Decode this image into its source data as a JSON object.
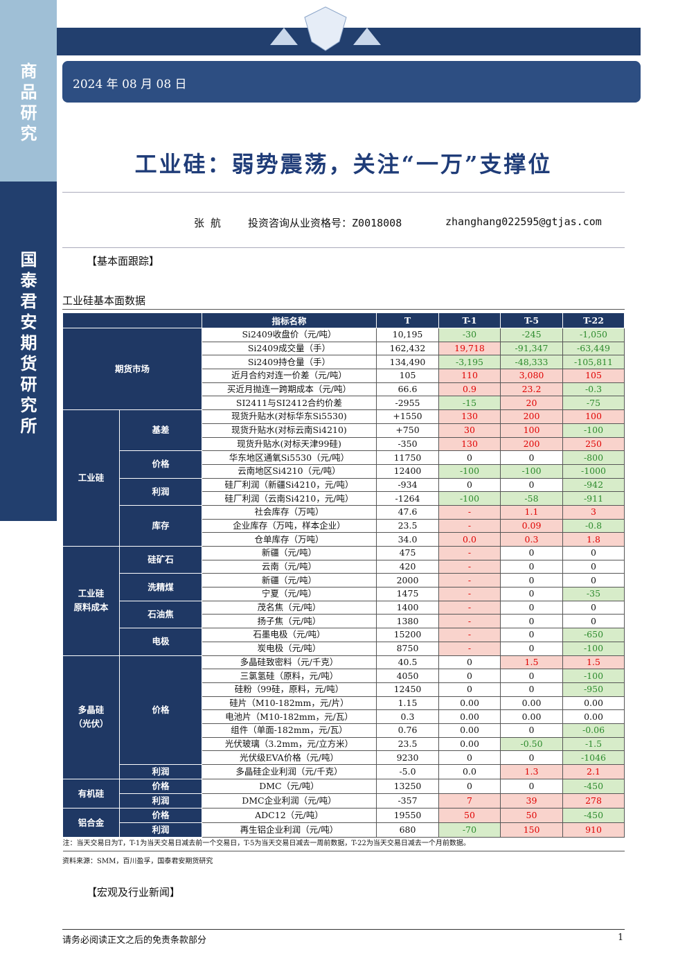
{
  "header": {
    "sidebar_top": "商品研究",
    "sidebar_bottom": "国泰君安期货研究所",
    "date": "2024 年 08 月 08 日",
    "title": "工业硅：弱势震荡，关注“一万”支撑位",
    "author": "张  航",
    "license": "投资咨询从业资格号：Z0018008",
    "email": "zhanghang022595@gtjas.com"
  },
  "section_1": "【基本面跟踪】",
  "table_title": "工业硅基本面数据",
  "table": {
    "headers": [
      "指标名称",
      "T",
      "T-1",
      "T-5",
      "T-22"
    ],
    "groups": [
      {
        "label": "期货市场",
        "subgroups": [
          {
            "rows": [
              {
                "name": "Si2409收盘价（元/吨）",
                "values": [
                  "10,195",
                  "-30",
                  "-245",
                  "-1,050"
                ],
                "colors": [
                  null,
                  "green",
                  "green",
                  "green"
                ]
              },
              {
                "name": "Si2409成交量（手）",
                "values": [
                  "162,432",
                  "19,718",
                  "-91,347",
                  "-63,449"
                ],
                "colors": [
                  null,
                  "red",
                  "green",
                  "green"
                ]
              },
              {
                "name": "Si2409持仓量（手）",
                "values": [
                  "134,490",
                  "-3,195",
                  "-48,333",
                  "-105,811"
                ],
                "colors": [
                  null,
                  "green",
                  "green",
                  "green"
                ]
              },
              {
                "name": "近月合约对连一价差（元/吨）",
                "values": [
                  "105",
                  "110",
                  "3,080",
                  "105"
                ],
                "colors": [
                  null,
                  "red",
                  "red",
                  "red"
                ]
              },
              {
                "name": "买近月抛连一跨期成本（元/吨）",
                "values": [
                  "66.6",
                  "0.9",
                  "23.2",
                  "-0.3"
                ],
                "colors": [
                  null,
                  "red",
                  "red",
                  "green"
                ]
              },
              {
                "name": "SI2411与SI2412合约价差",
                "values": [
                  "-2955",
                  "-15",
                  "20",
                  "-75"
                ],
                "colors": [
                  null,
                  "green",
                  "red",
                  "green"
                ]
              }
            ]
          }
        ]
      },
      {
        "label": "工业硅",
        "subgroups": [
          {
            "label": "基差",
            "rows": [
              {
                "name": "现货升贴水(对标华东Si5530)",
                "values": [
                  "+1550",
                  "130",
                  "200",
                  "100"
                ],
                "colors": [
                  null,
                  "red",
                  "red",
                  "red"
                ]
              },
              {
                "name": "现货升贴水(对标云南Si4210)",
                "values": [
                  "+750",
                  "30",
                  "100",
                  "-100"
                ],
                "colors": [
                  null,
                  "red",
                  "red",
                  "green"
                ]
              },
              {
                "name": "现货升贴水(对标天津99硅)",
                "values": [
                  "-350",
                  "130",
                  "200",
                  "250"
                ],
                "colors": [
                  null,
                  "red",
                  "red",
                  "red"
                ]
              }
            ]
          },
          {
            "label": "价格",
            "rows": [
              {
                "name": "华东地区通氧Si5530（元/吨）",
                "values": [
                  "11750",
                  "0",
                  "0",
                  "-800"
                ],
                "colors": [
                  null,
                  null,
                  null,
                  "green"
                ]
              },
              {
                "name": "云南地区Si4210（元/吨）",
                "values": [
                  "12400",
                  "-100",
                  "-100",
                  "-1000"
                ],
                "colors": [
                  null,
                  "green",
                  "green",
                  "green"
                ]
              }
            ]
          },
          {
            "label": "利润",
            "rows": [
              {
                "name": "硅厂利润（新疆Si4210，元/吨）",
                "values": [
                  "-934",
                  "0",
                  "0",
                  "-942"
                ],
                "colors": [
                  null,
                  null,
                  null,
                  "green"
                ]
              },
              {
                "name": "硅厂利润（云南Si4210，元/吨）",
                "values": [
                  "-1264",
                  "-100",
                  "-58",
                  "-911"
                ],
                "colors": [
                  null,
                  "green",
                  "green",
                  "green"
                ]
              }
            ]
          },
          {
            "label": "库存",
            "rows": [
              {
                "name": "社会库存（万吨）",
                "values": [
                  "47.6",
                  "-",
                  "1.1",
                  "3"
                ],
                "colors": [
                  null,
                  "red",
                  "red",
                  "red"
                ]
              },
              {
                "name": "企业库存（万吨，样本企业）",
                "values": [
                  "23.5",
                  "-",
                  "0.09",
                  "-0.8"
                ],
                "colors": [
                  null,
                  "red",
                  "red",
                  "green"
                ]
              },
              {
                "name": "仓单库存（万吨）",
                "values": [
                  "34.0",
                  "0.0",
                  "0.3",
                  "1.8"
                ],
                "colors": [
                  null,
                  "red",
                  "red",
                  "red"
                ]
              }
            ]
          }
        ]
      },
      {
        "label": "工业硅\n原料成本",
        "subgroups": [
          {
            "label": "硅矿石",
            "rows": [
              {
                "name": "新疆（元/吨）",
                "values": [
                  "475",
                  "-",
                  "0",
                  "0"
                ],
                "colors": [
                  null,
                  "red",
                  null,
                  null
                ]
              },
              {
                "name": "云南（元/吨）",
                "values": [
                  "420",
                  "-",
                  "0",
                  "0"
                ],
                "colors": [
                  null,
                  "red",
                  null,
                  null
                ]
              }
            ]
          },
          {
            "label": "洗精煤",
            "rows": [
              {
                "name": "新疆（元/吨）",
                "values": [
                  "2000",
                  "-",
                  "0",
                  "0"
                ],
                "colors": [
                  null,
                  "red",
                  null,
                  null
                ]
              },
              {
                "name": "宁夏（元/吨）",
                "values": [
                  "1475",
                  "-",
                  "0",
                  "-35"
                ],
                "colors": [
                  null,
                  "red",
                  null,
                  "green"
                ]
              }
            ]
          },
          {
            "label": "石油焦",
            "rows": [
              {
                "name": "茂名焦（元/吨）",
                "values": [
                  "1400",
                  "-",
                  "0",
                  "0"
                ],
                "colors": [
                  null,
                  "red",
                  null,
                  null
                ]
              },
              {
                "name": "扬子焦（元/吨）",
                "values": [
                  "1380",
                  "-",
                  "0",
                  "0"
                ],
                "colors": [
                  null,
                  "red",
                  null,
                  null
                ]
              }
            ]
          },
          {
            "label": "电极",
            "rows": [
              {
                "name": "石墨电极（元/吨）",
                "values": [
                  "15200",
                  "-",
                  "0",
                  "-650"
                ],
                "colors": [
                  null,
                  "red",
                  null,
                  "green"
                ]
              },
              {
                "name": "炭电极（元/吨）",
                "values": [
                  "8750",
                  "-",
                  "0",
                  "-100"
                ],
                "colors": [
                  null,
                  "red",
                  null,
                  "green"
                ]
              }
            ]
          }
        ]
      },
      {
        "label": "多晶硅\n（光伏）",
        "subgroups": [
          {
            "label": "价格",
            "rows": [
              {
                "name": "多晶硅致密料（元/千克）",
                "values": [
                  "40.5",
                  "0",
                  "1.5",
                  "1.5"
                ],
                "colors": [
                  null,
                  null,
                  "red",
                  "red"
                ]
              },
              {
                "name": "三氯氢硅（原料，元/吨）",
                "values": [
                  "4050",
                  "0",
                  "0",
                  "-100"
                ],
                "colors": [
                  null,
                  null,
                  null,
                  "green"
                ]
              },
              {
                "name": "硅粉（99硅，原料，元/吨）",
                "values": [
                  "12450",
                  "0",
                  "0",
                  "-950"
                ],
                "colors": [
                  null,
                  null,
                  null,
                  "green"
                ]
              },
              {
                "name": "硅片（M10-182mm，元/片）",
                "values": [
                  "1.15",
                  "0.00",
                  "0.00",
                  "0.00"
                ],
                "colors": [
                  null,
                  null,
                  null,
                  null
                ]
              },
              {
                "name": "电池片（M10-182mm，元/瓦）",
                "values": [
                  "0.3",
                  "0.00",
                  "0.00",
                  "0.00"
                ],
                "colors": [
                  null,
                  null,
                  null,
                  null
                ]
              },
              {
                "name": "组件（单面-182mm，元/瓦）",
                "values": [
                  "0.76",
                  "0.00",
                  "0",
                  "-0.06"
                ],
                "colors": [
                  null,
                  null,
                  null,
                  "green"
                ]
              },
              {
                "name": "光伏玻璃（3.2mm，元/立方米）",
                "values": [
                  "23.5",
                  "0.00",
                  "-0.50",
                  "-1.5"
                ],
                "colors": [
                  null,
                  null,
                  "green",
                  "green"
                ]
              },
              {
                "name": "光伏级EVA价格（元/吨）",
                "values": [
                  "9230",
                  "0",
                  "0",
                  "-1046"
                ],
                "colors": [
                  null,
                  null,
                  null,
                  "green"
                ]
              }
            ]
          },
          {
            "label": "利润",
            "rows": [
              {
                "name": "多晶硅企业利润（元/千克）",
                "values": [
                  "-5.0",
                  "0.0",
                  "1.3",
                  "2.1"
                ],
                "colors": [
                  null,
                  null,
                  "red",
                  "red"
                ]
              }
            ]
          }
        ]
      },
      {
        "label": "有机硅",
        "subgroups": [
          {
            "label": "价格",
            "rows": [
              {
                "name": "DMC（元/吨）",
                "values": [
                  "13250",
                  "0",
                  "0",
                  "-450"
                ],
                "colors": [
                  null,
                  null,
                  null,
                  "green"
                ]
              }
            ]
          },
          {
            "label": "利润",
            "rows": [
              {
                "name": "DMC企业利润（元/吨）",
                "values": [
                  "-357",
                  "7",
                  "39",
                  "278"
                ],
                "colors": [
                  null,
                  "red",
                  "red",
                  "red"
                ]
              }
            ]
          }
        ]
      },
      {
        "label": "铝合金",
        "subgroups": [
          {
            "label": "价格",
            "rows": [
              {
                "name": "ADC12（元/吨）",
                "values": [
                  "19550",
                  "50",
                  "50",
                  "-450"
                ],
                "colors": [
                  null,
                  "red",
                  "red",
                  "green"
                ]
              }
            ]
          },
          {
            "label": "利润",
            "rows": [
              {
                "name": "再生铝企业利润（元/吨）",
                "values": [
                  "680",
                  "-70",
                  "150",
                  "910"
                ],
                "colors": [
                  null,
                  "green",
                  "red",
                  "red"
                ]
              }
            ]
          }
        ]
      }
    ],
    "note": "注：当天交易日为T，T-1为当天交易日减去前一个交易日，T-5为当天交易日减去一周前数据，T-22为当天交易日减去一个月前数据。"
  },
  "source": "资料来源：SMM，百川盈孚，国泰君安期货研究",
  "section_2": "【宏观及行业新闻】",
  "footer": {
    "disclaimer": "请务必阅读正文之后的免责条款部分",
    "page": "1"
  }
}
